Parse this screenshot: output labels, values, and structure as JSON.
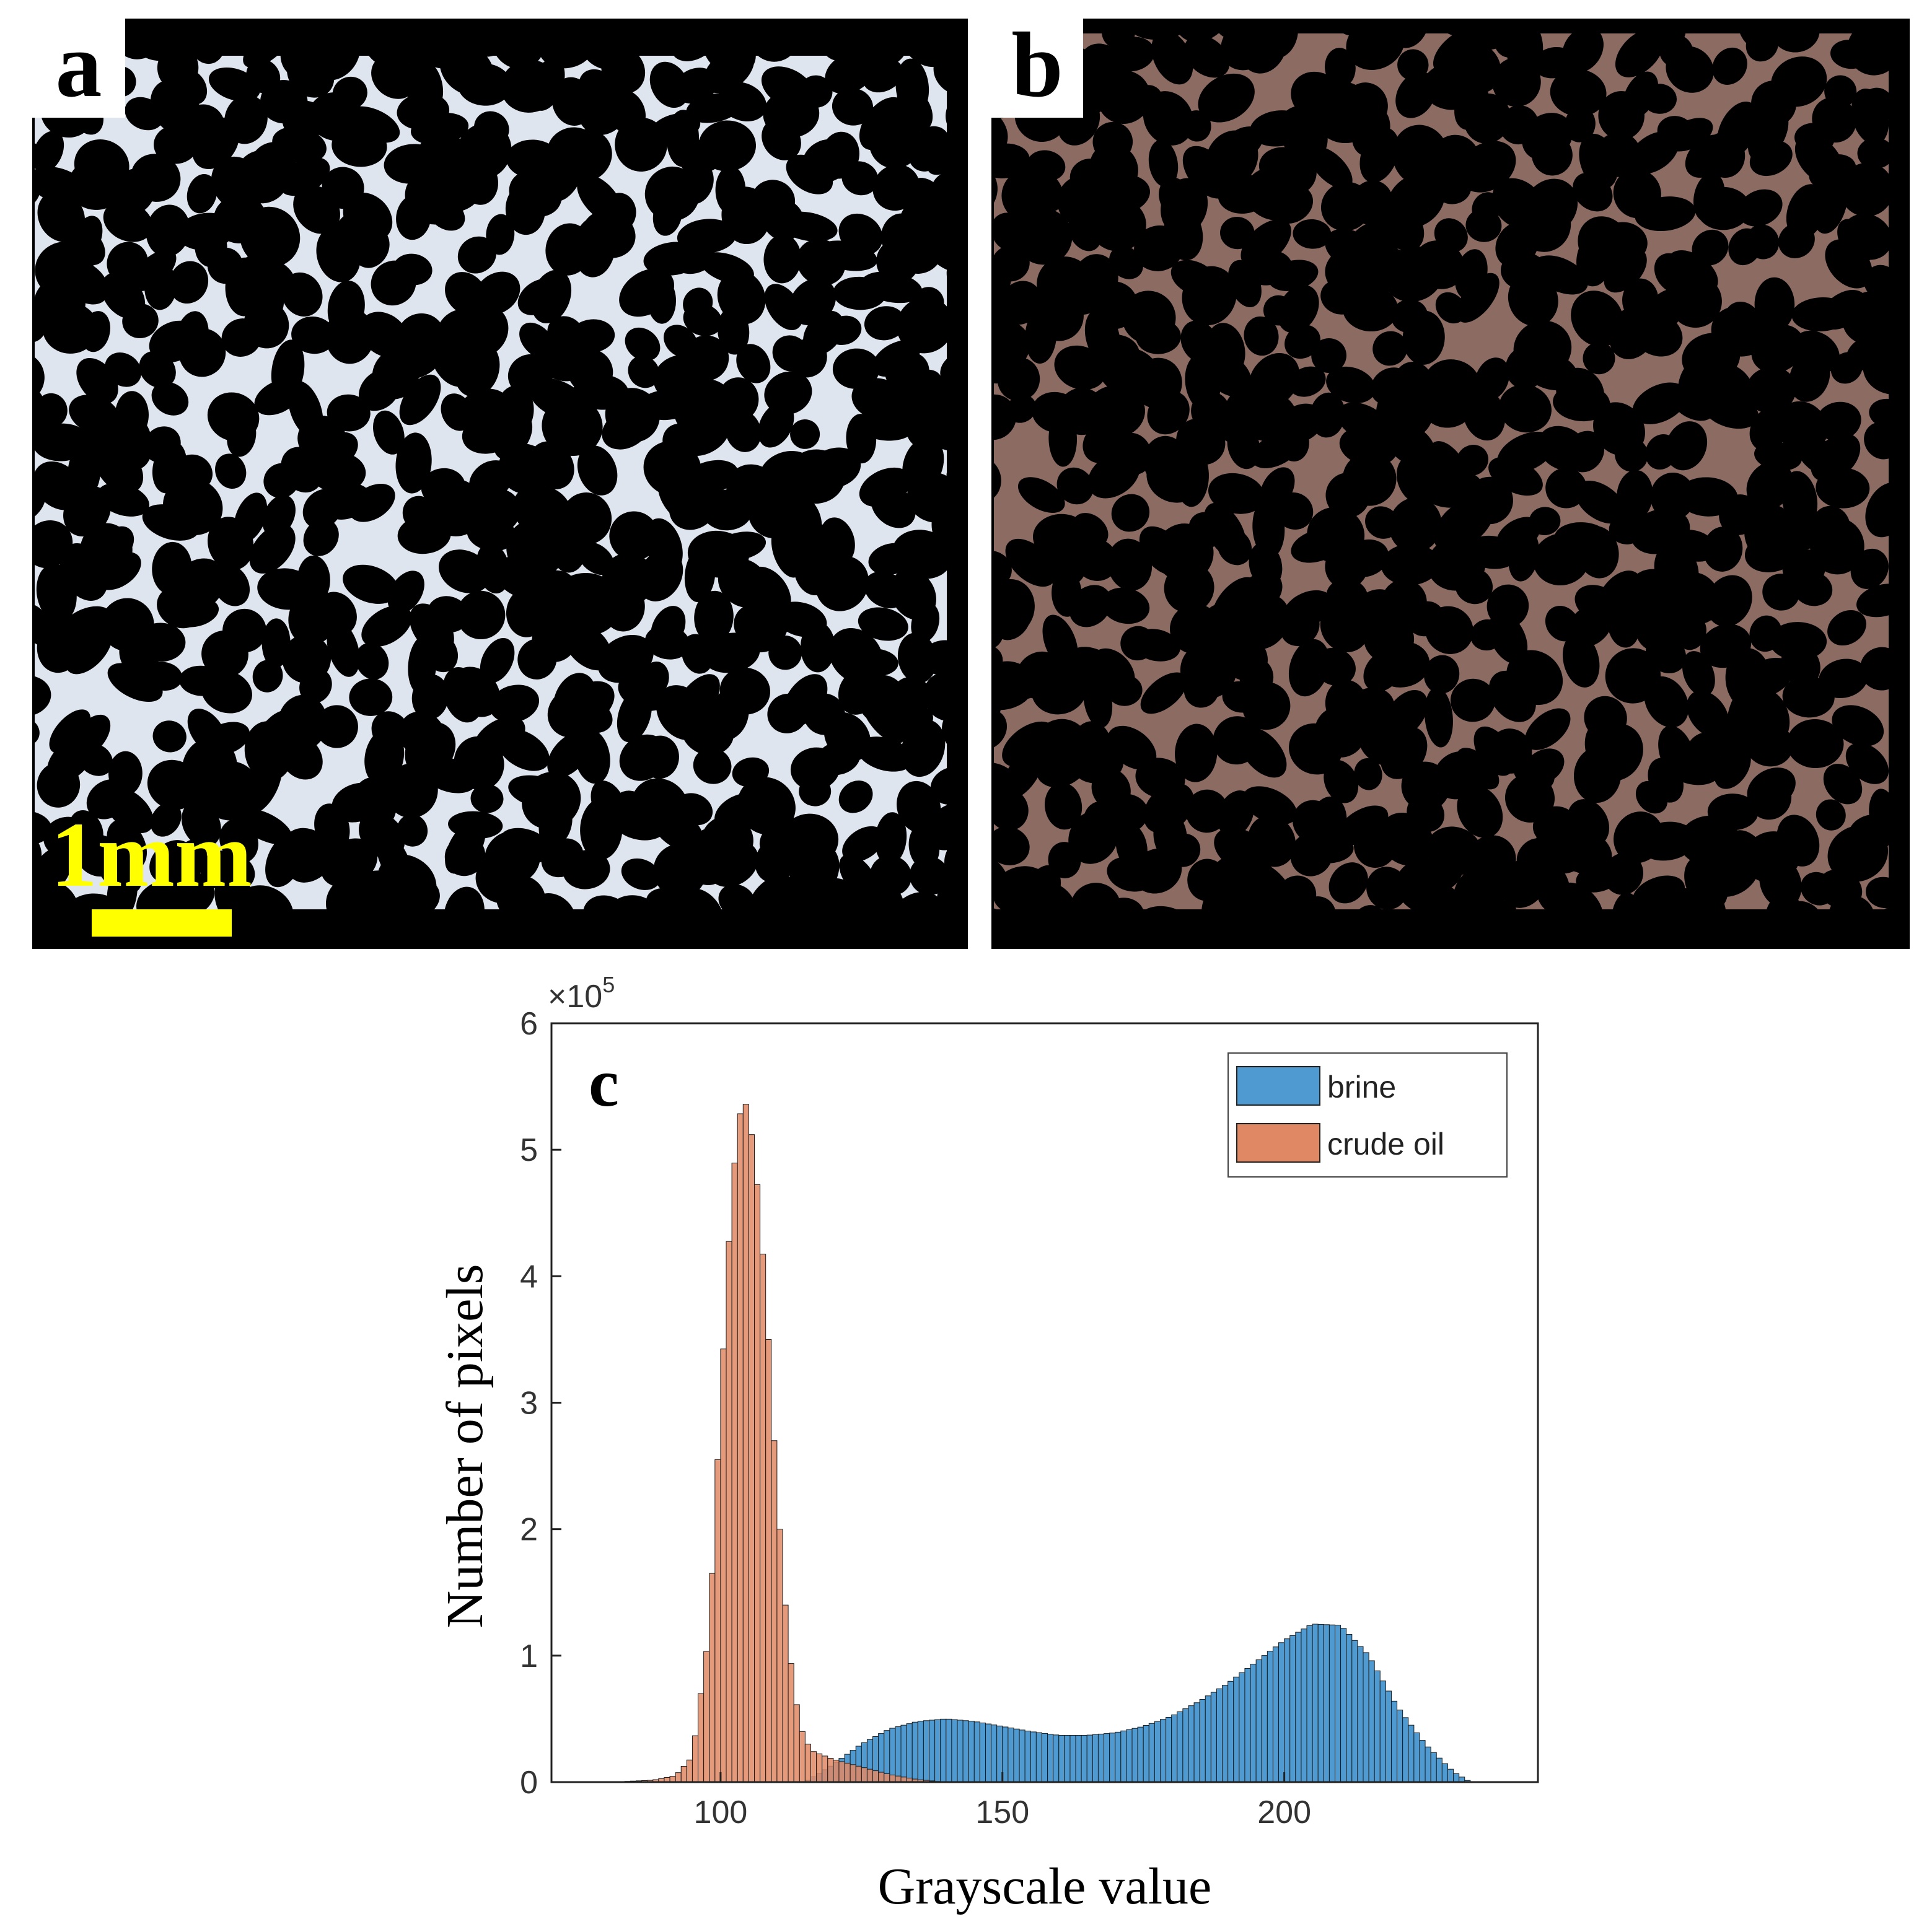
{
  "panels": {
    "a": {
      "letter": "a",
      "scale_label": "1mm",
      "pore_color": "#dfe5ee",
      "grain_color": "#000000"
    },
    "b": {
      "letter": "b",
      "pore_color": "#8c6b62",
      "grain_color": "#000000"
    },
    "c": {
      "letter": "c"
    }
  },
  "colors": {
    "scale": "#ffff00",
    "brine": "#4f9bd1",
    "crude_oil": "#e08864"
  },
  "chart_data": {
    "type": "histogram",
    "xlabel": "Grayscale value",
    "ylabel": "Number of pixels",
    "exponent_label": "×10",
    "exponent_power": "5",
    "xlim": [
      70,
      245
    ],
    "ylim": [
      0,
      600000
    ],
    "x_ticks": [
      100,
      150,
      200
    ],
    "y_ticks": [
      0,
      1,
      2,
      3,
      4,
      5,
      6
    ],
    "legend": {
      "position": "top-right",
      "entries": [
        "brine",
        "crude oil"
      ]
    },
    "series": [
      {
        "name": "brine",
        "color": "#4f9bd1",
        "points": [
          [
            115,
            0
          ],
          [
            120,
            14000
          ],
          [
            125,
            30000
          ],
          [
            130,
            42000
          ],
          [
            135,
            48000
          ],
          [
            140,
            50000
          ],
          [
            145,
            48000
          ],
          [
            150,
            44000
          ],
          [
            155,
            40000
          ],
          [
            160,
            37000
          ],
          [
            165,
            37000
          ],
          [
            170,
            39000
          ],
          [
            175,
            44000
          ],
          [
            180,
            52000
          ],
          [
            185,
            64000
          ],
          [
            190,
            78000
          ],
          [
            195,
            95000
          ],
          [
            200,
            112000
          ],
          [
            205,
            125000
          ],
          [
            210,
            124000
          ],
          [
            215,
            100000
          ],
          [
            220,
            60000
          ],
          [
            225,
            30000
          ],
          [
            230,
            8000
          ],
          [
            233,
            0
          ]
        ]
      },
      {
        "name": "crude oil",
        "color": "#e08864",
        "points": [
          [
            80,
            0
          ],
          [
            88,
            1500
          ],
          [
            92,
            5000
          ],
          [
            95,
            20000
          ],
          [
            98,
            120000
          ],
          [
            100,
            300000
          ],
          [
            102,
            470000
          ],
          [
            104,
            548000
          ],
          [
            106,
            500000
          ],
          [
            108,
            390000
          ],
          [
            110,
            230000
          ],
          [
            112,
            110000
          ],
          [
            114,
            45000
          ],
          [
            116,
            25000
          ],
          [
            120,
            18000
          ],
          [
            125,
            12000
          ],
          [
            130,
            6000
          ],
          [
            135,
            2000
          ],
          [
            140,
            0
          ]
        ]
      }
    ]
  }
}
